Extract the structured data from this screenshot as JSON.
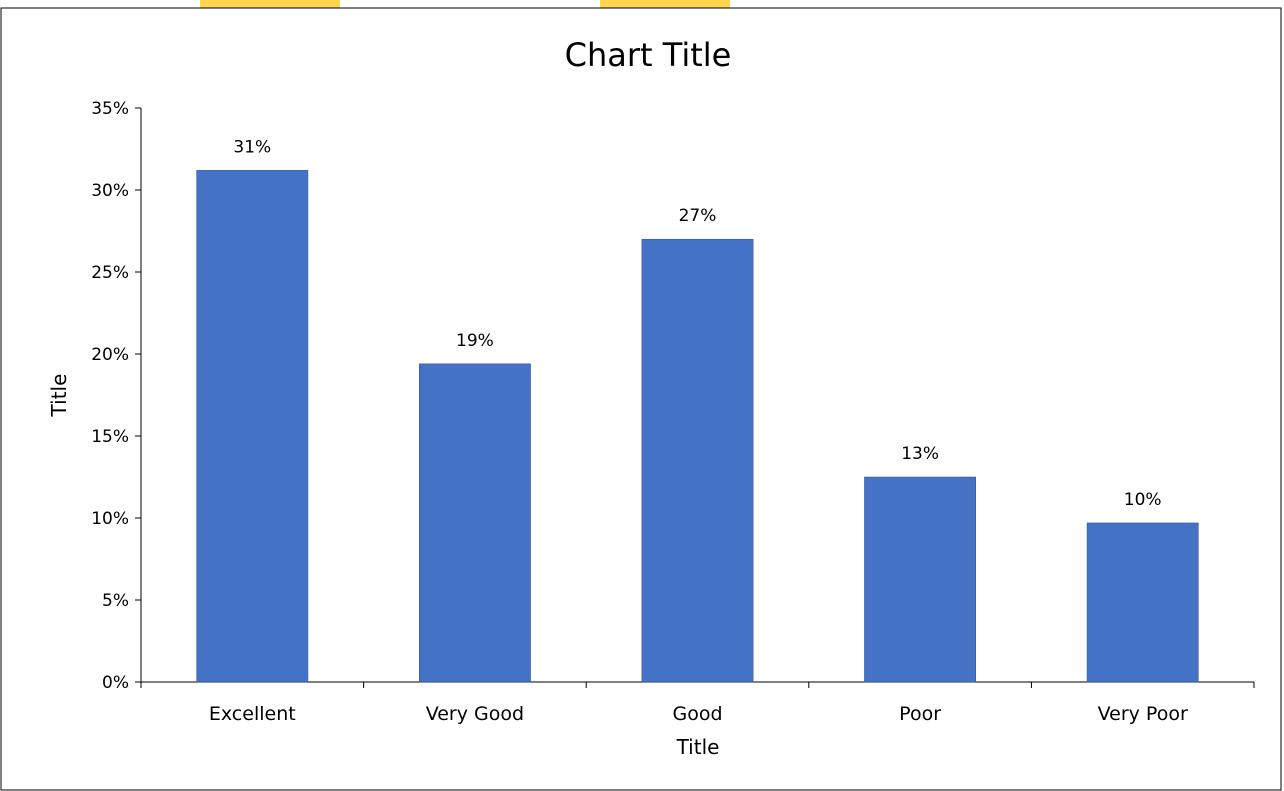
{
  "colors": {
    "bar": "#4472C4",
    "axis": "#000000",
    "frame": "#000000",
    "background_stripe": "#FFD54F"
  },
  "chart_data": {
    "type": "bar",
    "title": "Chart Title",
    "xlabel": "Title",
    "ylabel": "Title",
    "categories": [
      "Excellent",
      "Very Good",
      "Good",
      "Poor",
      "Very Poor"
    ],
    "values": [
      0.312,
      0.194,
      0.27,
      0.125,
      0.097
    ],
    "data_labels": [
      "31%",
      "19%",
      "27%",
      "13%",
      "10%"
    ],
    "ylim": [
      0,
      0.35
    ],
    "yticks": [
      0,
      0.05,
      0.1,
      0.15,
      0.2,
      0.25,
      0.3,
      0.35
    ],
    "ytick_labels": [
      "0%",
      "5%",
      "10%",
      "15%",
      "20%",
      "25%",
      "30%",
      "35%"
    ],
    "grid": false,
    "legend": "none"
  }
}
